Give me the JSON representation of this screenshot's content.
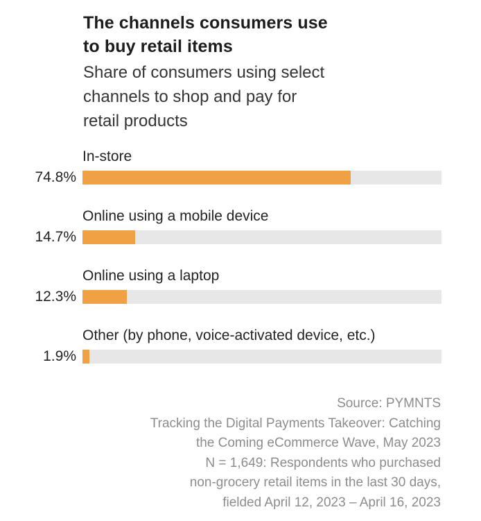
{
  "colors": {
    "background": "#FFFFFF",
    "bar_fill": "#EFA143",
    "bar_track": "#E7E7E7",
    "title_text": "#1C1C1E",
    "subtitle_text": "#333335",
    "label_text": "#222224",
    "source_text": "#8C8C8E"
  },
  "chart_data": {
    "type": "bar",
    "orientation": "horizontal",
    "title": "The channels consumers use to buy retail items",
    "subtitle": "Share of consumers using select channels to shop and pay for retail products",
    "title_lines": [
      "The channels consumers use",
      "to buy retail items"
    ],
    "subtitle_lines": [
      "Share of consumers using select",
      "channels to shop and pay for",
      "retail products"
    ],
    "categories": [
      "In-store",
      "Online using a mobile device",
      "Online using a laptop",
      "Other (by phone, voice-activated device, etc.)"
    ],
    "values": [
      74.8,
      14.7,
      12.3,
      1.9
    ],
    "value_labels": [
      "74.8%",
      "14.7%",
      "12.3%",
      "1.9%"
    ],
    "unit": "%",
    "xlim": [
      0,
      100
    ],
    "grid": false,
    "legend": "none"
  },
  "source": {
    "lines": [
      "Source: PYMNTS",
      "Tracking the Digital Payments Takeover: Catching",
      "the Coming eCommerce Wave, May 2023",
      "N = 1,649: Respondents who purchased",
      "non-grocery retail items in the last 30 days,",
      "fielded April 12, 2023 – April 16, 2023"
    ]
  }
}
